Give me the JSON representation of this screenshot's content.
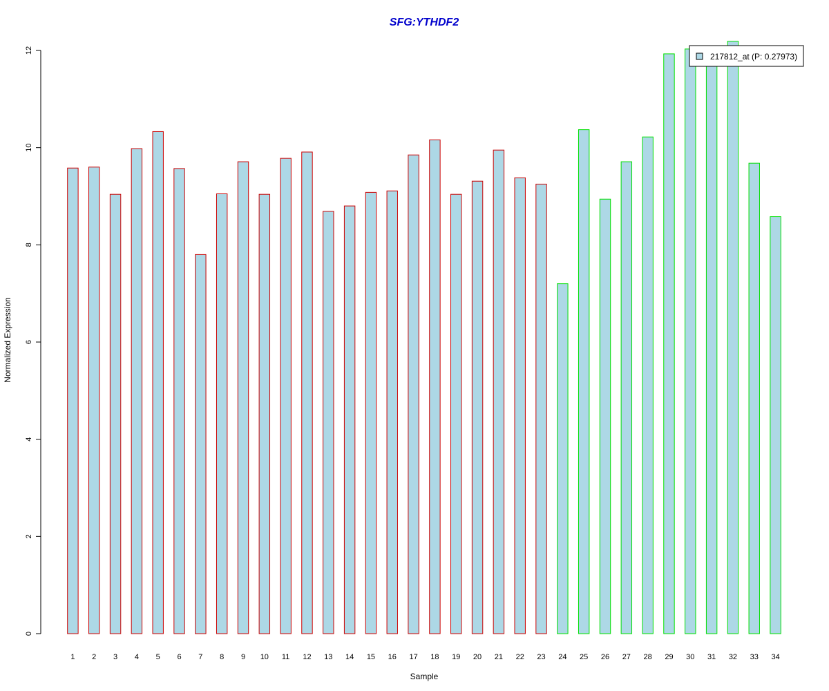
{
  "chart_data": {
    "type": "bar",
    "title": "SFG:YTHDF2",
    "xlabel": "Sample",
    "ylabel": "Normalized Expression",
    "ylim": [
      0,
      12.3
    ],
    "yticks": [
      0,
      2,
      4,
      6,
      8,
      10,
      12
    ],
    "categories": [
      "1",
      "2",
      "3",
      "4",
      "5",
      "6",
      "7",
      "8",
      "9",
      "10",
      "11",
      "12",
      "13",
      "14",
      "15",
      "16",
      "17",
      "18",
      "19",
      "20",
      "21",
      "22",
      "23",
      "24",
      "25",
      "26",
      "27",
      "28",
      "29",
      "30",
      "31",
      "32",
      "33",
      "34"
    ],
    "series": [
      {
        "name": "217812_at (P: 0.27973)",
        "values": [
          9.58,
          9.6,
          9.04,
          9.98,
          10.33,
          9.57,
          7.8,
          9.05,
          9.71,
          9.04,
          9.78,
          9.91,
          8.69,
          8.8,
          9.08,
          9.11,
          9.85,
          10.16,
          9.04,
          9.31,
          9.95,
          9.38,
          9.25,
          7.2,
          10.37,
          8.94,
          9.71,
          10.22,
          11.93,
          12.03,
          11.75,
          12.19,
          9.68,
          8.58
        ]
      }
    ],
    "groups": [
      {
        "from": 1,
        "to": 23,
        "border_color": "#cc0000"
      },
      {
        "from": 24,
        "to": 34,
        "border_color": "#00e000"
      }
    ],
    "bar_fill": "#add8e6",
    "title_color": "#0000cc",
    "grid": false,
    "legend_position": "top-right"
  }
}
